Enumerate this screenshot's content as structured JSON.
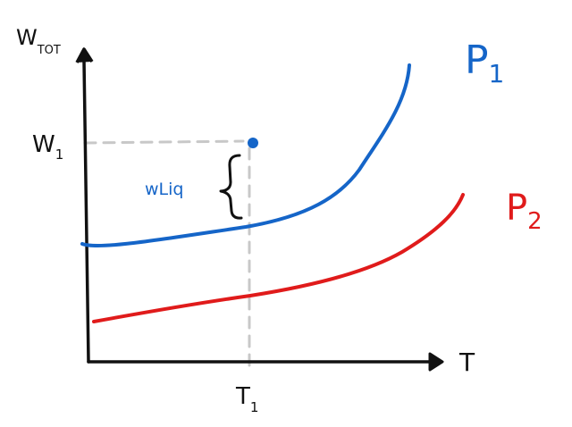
{
  "axes": {
    "y_label_main": "W",
    "y_label_sub": "TOT",
    "x_label": "T"
  },
  "markers": {
    "w1_main": "W",
    "w1_sub": "1",
    "t1_main": "T",
    "t1_sub": "1",
    "wliq": "wLiq"
  },
  "curves": [
    {
      "label_main": "P",
      "label_sub": "1",
      "color": "#1565c8"
    },
    {
      "label_main": "P",
      "label_sub": "2",
      "color": "#e01b1b"
    }
  ],
  "colors": {
    "axis": "#111111",
    "guide": "#c8c8c8",
    "point": "#1565c8"
  }
}
